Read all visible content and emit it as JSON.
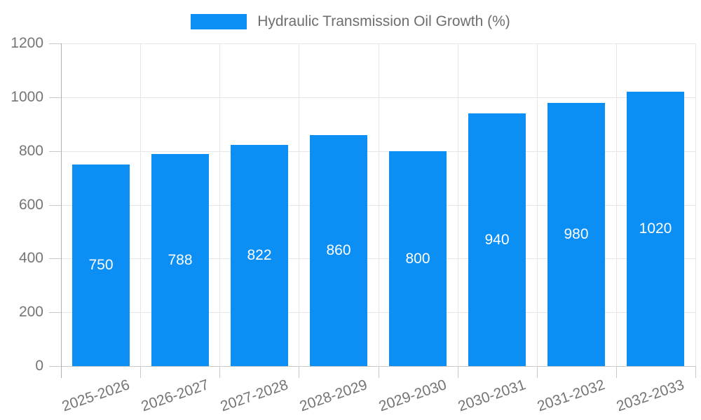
{
  "chart_data": {
    "type": "bar",
    "title": "Hydraulic Transmission Oil Growth (%)",
    "categories": [
      "2025-2026",
      "2026-2027",
      "2027-2028",
      "2028-2029",
      "2029-2030",
      "2030-2031",
      "2031-2032",
      "2032-2033"
    ],
    "values": [
      750,
      788,
      822,
      860,
      800,
      940,
      980,
      1020
    ],
    "xlabel": "",
    "ylabel": "",
    "ylim": [
      0,
      1200
    ],
    "y_ticks": [
      0,
      200,
      400,
      600,
      800,
      1000,
      1200
    ],
    "grid": "both",
    "legend_position": "top-center",
    "value_labels": "inside-center",
    "x_tick_rotation_deg": -19
  },
  "colors": {
    "bar": "#0b8ff5",
    "grid": "#e6e6e6",
    "axis": "#b0b0b0",
    "tick": "#c9c9c9",
    "axis_text": "#757575",
    "legend_text": "#6e6e6e",
    "value_text": "#ffffff",
    "background": "#ffffff"
  }
}
